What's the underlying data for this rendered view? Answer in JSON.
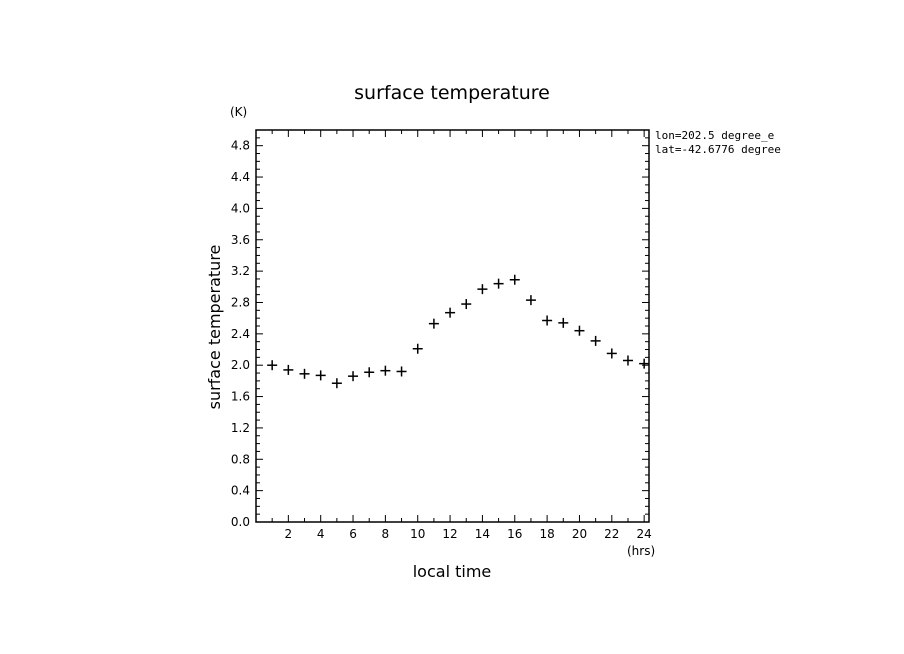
{
  "chart_data": {
    "type": "scatter",
    "title": "surface temperature",
    "xlabel": "local time",
    "ylabel": "surface temperature",
    "x_unit": "(hrs)",
    "y_unit": "(K)",
    "xlim": [
      0,
      24.3
    ],
    "ylim": [
      0,
      5.0
    ],
    "x_ticks": [
      "2",
      "4",
      "6",
      "8",
      "10",
      "12",
      "14",
      "16",
      "18",
      "20",
      "22",
      "24"
    ],
    "y_ticks": [
      "0.0",
      "0.4",
      "0.8",
      "1.2",
      "1.6",
      "2.0",
      "2.4",
      "2.8",
      "3.2",
      "3.6",
      "4.0",
      "4.4",
      "4.8"
    ],
    "annotations": [
      "lon=202.5 degree_e",
      "lat=-42.6776 degree"
    ],
    "grid": false,
    "marker": "plus",
    "series": [
      {
        "x": [
          1,
          2,
          3,
          4,
          5,
          6,
          7,
          8,
          9,
          10,
          11,
          12,
          13,
          14,
          15,
          16,
          17,
          18,
          19,
          20,
          21,
          22,
          23,
          24
        ],
        "y": [
          2.0,
          1.94,
          1.89,
          1.87,
          1.77,
          1.86,
          1.91,
          1.93,
          1.92,
          2.21,
          2.53,
          2.67,
          2.78,
          2.97,
          3.04,
          3.09,
          2.83,
          2.57,
          2.54,
          2.44,
          2.31,
          2.15,
          2.06,
          2.02
        ]
      }
    ]
  }
}
